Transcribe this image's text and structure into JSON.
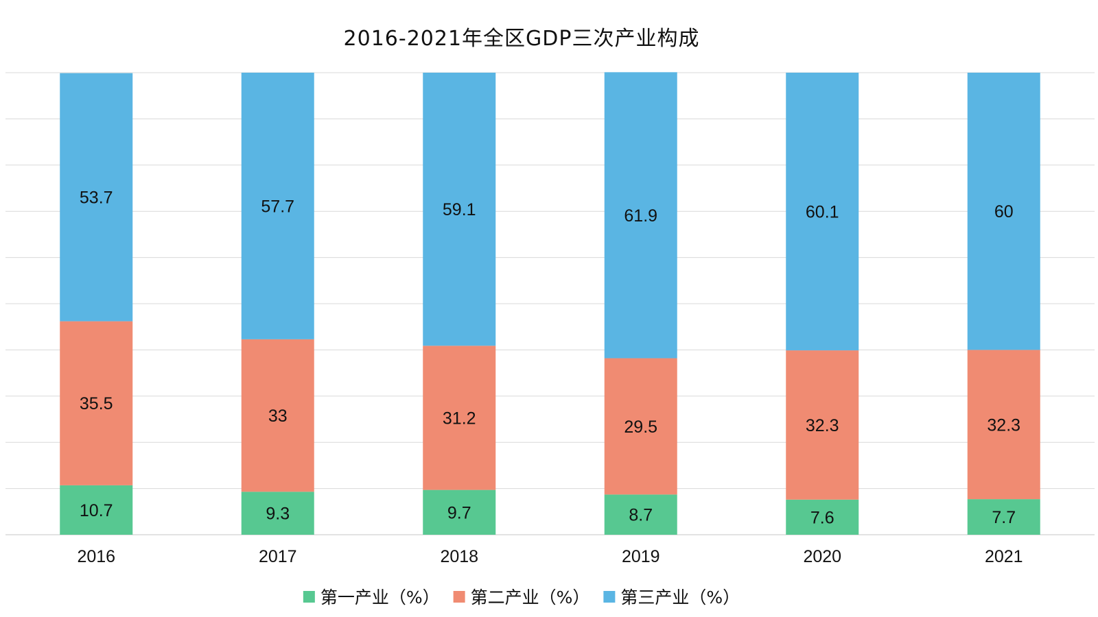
{
  "chart_data": {
    "type": "bar",
    "stacked": true,
    "title": "2016-2021年全区GDP三次产业构成",
    "categories": [
      "2016",
      "2017",
      "2018",
      "2019",
      "2020",
      "2021"
    ],
    "series": [
      {
        "name": "第一产业（%）",
        "color": "#57c891",
        "values": [
          10.7,
          9.3,
          9.7,
          8.7,
          7.6,
          7.7
        ]
      },
      {
        "name": "第二产业（%）",
        "color": "#f08b72",
        "values": [
          35.5,
          33,
          31.2,
          29.5,
          32.3,
          32.3
        ]
      },
      {
        "name": "第三产业（%）",
        "color": "#5ab5e3",
        "values": [
          53.7,
          57.7,
          59.1,
          61.9,
          60.1,
          60
        ]
      }
    ],
    "ylim": [
      0,
      100
    ],
    "grid": true,
    "legend": "bottom",
    "xlabel": "",
    "ylabel": ""
  }
}
